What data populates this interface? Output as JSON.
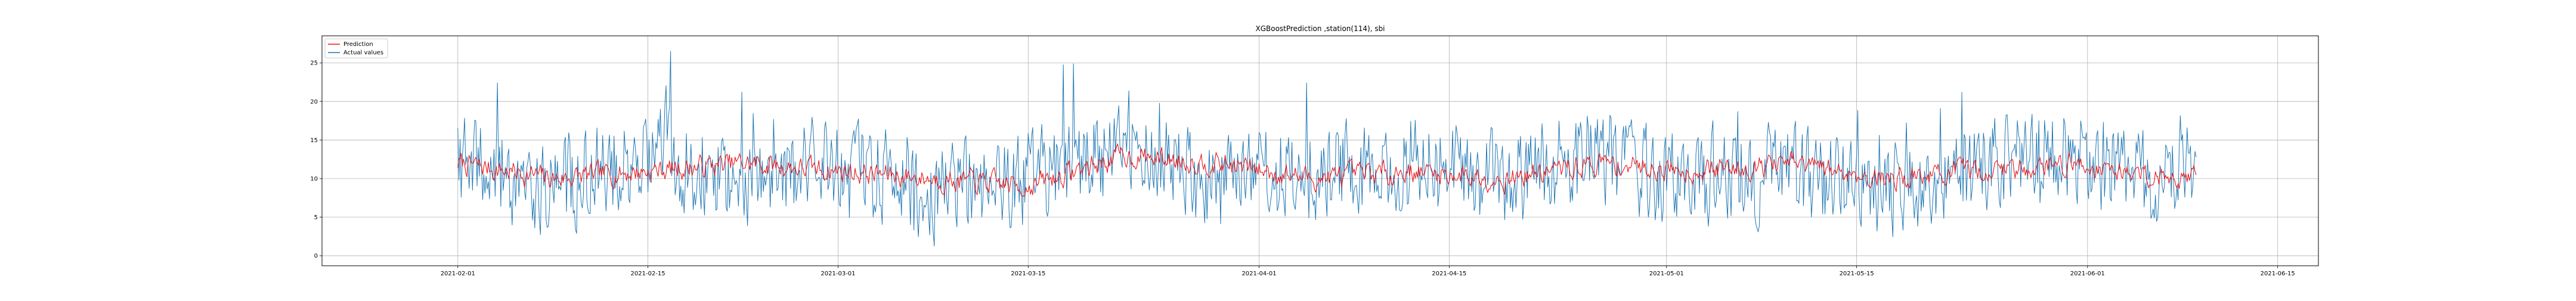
{
  "chart_data": {
    "type": "line",
    "title": "XGBoostPrediction ,station(114), sbi",
    "xlabel": "",
    "ylabel": "",
    "x_range": [
      "2021-01-22",
      "2021-06-18"
    ],
    "ylim": [
      -1.3,
      28.5
    ],
    "grid": true,
    "legend_position": "top-left",
    "x_ticks": [
      "2021-02-01",
      "2021-02-15",
      "2021-03-01",
      "2021-03-15",
      "2021-04-01",
      "2021-04-15",
      "2021-05-01",
      "2021-05-15",
      "2021-06-01",
      "2021-06-15"
    ],
    "y_ticks": [
      0,
      5,
      10,
      15,
      20,
      25
    ],
    "x": [
      "2021-02-01",
      "2021-02-08",
      "2021-02-15",
      "2021-02-22",
      "2021-03-01",
      "2021-03-08",
      "2021-03-15",
      "2021-03-22",
      "2021-03-29",
      "2021-04-05",
      "2021-04-12",
      "2021-04-19",
      "2021-04-26",
      "2021-05-03",
      "2021-05-10",
      "2021-05-17",
      "2021-05-24",
      "2021-05-31",
      "2021-06-07",
      "2021-06-09"
    ],
    "series": [
      {
        "name": "Prediction",
        "color": "#e8161b",
        "values": [
          12,
          10,
          11,
          12,
          11,
          10,
          9,
          13,
          12,
          10,
          11,
          10,
          12,
          11,
          12,
          10,
          11,
          12,
          10,
          11
        ]
      },
      {
        "name": "Actual values",
        "color": "#1f77b4",
        "values": [
          12,
          9,
          13,
          10,
          12,
          8,
          10,
          14,
          9,
          11,
          12,
          10,
          13,
          9,
          11,
          8,
          12,
          13,
          9,
          13
        ]
      }
    ]
  }
}
